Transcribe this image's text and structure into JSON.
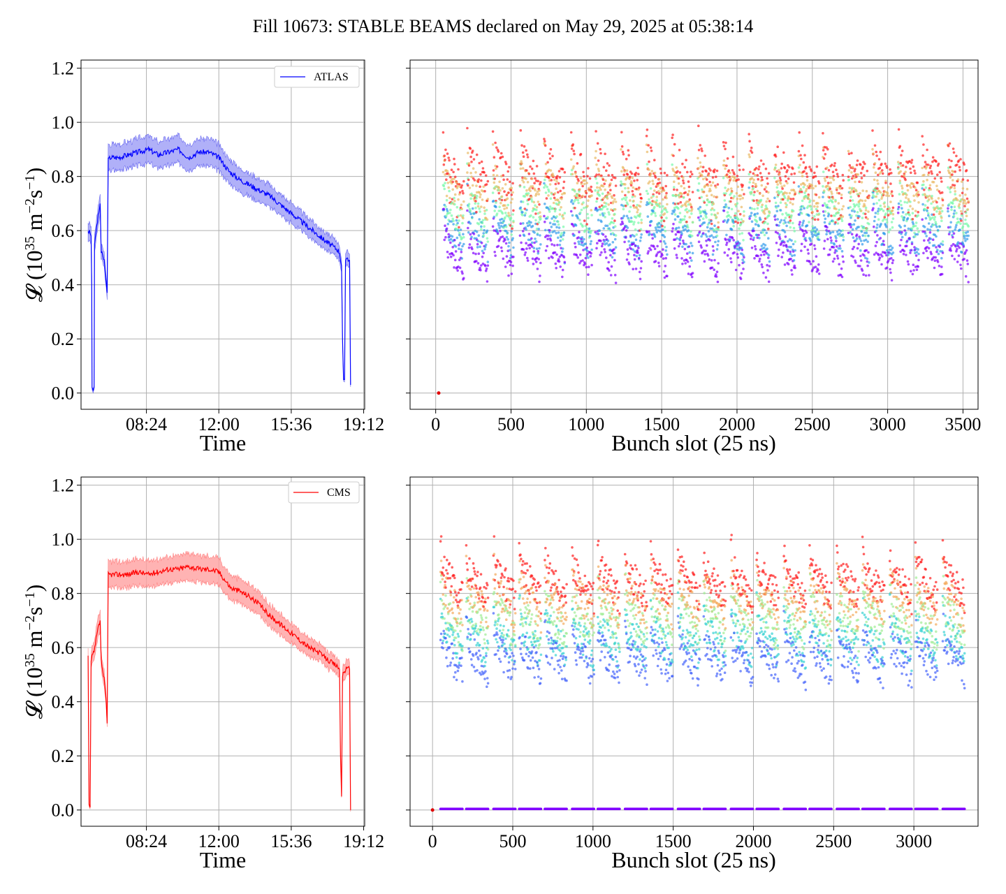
{
  "title": "Fill 10673: STABLE BEAMS declared on May 29, 2025 at 05:38:14",
  "colors": {
    "atlas": "#0000ff",
    "atlas_band": "#8f8ff5",
    "cms": "#ff0000",
    "cms_band": "#ffa0a0",
    "grid": "#b0b0b0"
  },
  "chart_data": [
    {
      "id": "atlas-time",
      "type": "line",
      "series": [
        {
          "name": "ATLAS",
          "color": "#0000ff"
        }
      ],
      "xlabel": "Time",
      "ylabel_main": "𝓛 (10",
      "ylabel_sup1": "35",
      "ylabel_mid": " m",
      "ylabel_sup2": "−2",
      "ylabel_mid2": "s",
      "ylabel_sup3": "−1",
      "ylabel_end": ")",
      "x_ticks": [
        "08:24",
        "12:00",
        "15:36",
        "19:12"
      ],
      "x_tick_hours": [
        8.4,
        12.0,
        15.6,
        19.2
      ],
      "xlim_hours": [
        5.15,
        19.25
      ],
      "ylim": [
        -0.06,
        1.23
      ],
      "y_ticks": [
        "0.0",
        "0.2",
        "0.4",
        "0.6",
        "0.8",
        "1.0",
        "1.2"
      ],
      "line": [
        [
          5.5,
          0.6
        ],
        [
          5.6,
          0.59
        ],
        [
          5.65,
          0.58
        ],
        [
          5.68,
          0.4
        ],
        [
          5.7,
          0.02
        ],
        [
          5.75,
          0.01
        ],
        [
          5.8,
          0.02
        ],
        [
          5.82,
          0.55
        ],
        [
          5.9,
          0.6
        ],
        [
          6.0,
          0.65
        ],
        [
          6.1,
          0.7
        ],
        [
          6.15,
          0.52
        ],
        [
          6.3,
          0.49
        ],
        [
          6.4,
          0.41
        ],
        [
          6.45,
          0.37
        ],
        [
          6.5,
          0.86
        ],
        [
          6.6,
          0.87
        ],
        [
          7.0,
          0.87
        ],
        [
          7.5,
          0.88
        ],
        [
          8.0,
          0.89
        ],
        [
          8.5,
          0.9
        ],
        [
          9.0,
          0.88
        ],
        [
          9.5,
          0.89
        ],
        [
          10.0,
          0.9
        ],
        [
          10.5,
          0.87
        ],
        [
          11.0,
          0.89
        ],
        [
          11.5,
          0.89
        ],
        [
          12.0,
          0.87
        ],
        [
          12.2,
          0.85
        ],
        [
          12.5,
          0.82
        ],
        [
          13.0,
          0.79
        ],
        [
          13.5,
          0.77
        ],
        [
          14.0,
          0.75
        ],
        [
          14.5,
          0.73
        ],
        [
          15.0,
          0.7
        ],
        [
          15.5,
          0.67
        ],
        [
          16.0,
          0.64
        ],
        [
          16.5,
          0.61
        ],
        [
          17.0,
          0.58
        ],
        [
          17.5,
          0.55
        ],
        [
          17.9,
          0.53
        ],
        [
          18.0,
          0.52
        ],
        [
          18.1,
          0.47
        ],
        [
          18.15,
          0.2
        ],
        [
          18.2,
          0.05
        ],
        [
          18.25,
          0.05
        ],
        [
          18.3,
          0.49
        ],
        [
          18.5,
          0.49
        ],
        [
          18.55,
          0.03
        ]
      ],
      "band_half_width": 0.05
    },
    {
      "id": "atlas-bunch",
      "type": "scatter",
      "xlabel": "Bunch slot (25 ns)",
      "x_ticks": [
        "0",
        "500",
        "1000",
        "1500",
        "2000",
        "2500",
        "3000",
        "3500"
      ],
      "x_tick_values": [
        0,
        500,
        1000,
        1500,
        2000,
        2500,
        3000,
        3500
      ],
      "xlim": [
        -170,
        3600
      ],
      "ylim": [
        -0.06,
        1.23
      ],
      "train_starts": [
        50,
        210,
        380,
        560,
        720,
        900,
        1060,
        1230,
        1400,
        1570,
        1740,
        1910,
        2080,
        2250,
        2410,
        2570,
        2740,
        2900,
        3070,
        3230,
        3400
      ],
      "train_length": 140,
      "extra_point": [
        20,
        0.0
      ]
    },
    {
      "id": "cms-time",
      "type": "line",
      "series": [
        {
          "name": "CMS",
          "color": "#ff0000"
        }
      ],
      "xlabel": "Time",
      "ylabel_main": "𝓛 (10",
      "ylabel_sup1": "35",
      "ylabel_mid": " m",
      "ylabel_sup2": "−2",
      "ylabel_mid2": "s",
      "ylabel_sup3": "−1",
      "ylabel_end": ")",
      "x_ticks": [
        "08:24",
        "12:00",
        "15:36",
        "19:12"
      ],
      "x_tick_hours": [
        8.4,
        12.0,
        15.6,
        19.2
      ],
      "xlim_hours": [
        5.15,
        19.25
      ],
      "ylim": [
        -0.06,
        1.23
      ],
      "y_ticks": [
        "0.0",
        "0.2",
        "0.4",
        "0.6",
        "0.8",
        "1.0",
        "1.2"
      ],
      "line": [
        [
          5.5,
          0.57
        ],
        [
          5.55,
          0.02
        ],
        [
          5.6,
          0.01
        ],
        [
          5.65,
          0.55
        ],
        [
          5.7,
          0.57
        ],
        [
          5.8,
          0.58
        ],
        [
          5.9,
          0.63
        ],
        [
          6.0,
          0.67
        ],
        [
          6.1,
          0.7
        ],
        [
          6.15,
          0.55
        ],
        [
          6.3,
          0.48
        ],
        [
          6.4,
          0.4
        ],
        [
          6.45,
          0.32
        ],
        [
          6.5,
          0.87
        ],
        [
          6.6,
          0.87
        ],
        [
          7.0,
          0.87
        ],
        [
          7.5,
          0.87
        ],
        [
          8.0,
          0.88
        ],
        [
          8.5,
          0.87
        ],
        [
          9.0,
          0.88
        ],
        [
          9.5,
          0.89
        ],
        [
          10.0,
          0.89
        ],
        [
          10.5,
          0.9
        ],
        [
          11.0,
          0.89
        ],
        [
          11.5,
          0.89
        ],
        [
          12.0,
          0.88
        ],
        [
          12.3,
          0.85
        ],
        [
          12.6,
          0.82
        ],
        [
          13.0,
          0.81
        ],
        [
          13.5,
          0.79
        ],
        [
          14.0,
          0.76
        ],
        [
          14.5,
          0.72
        ],
        [
          15.0,
          0.69
        ],
        [
          15.5,
          0.66
        ],
        [
          16.0,
          0.63
        ],
        [
          16.5,
          0.6
        ],
        [
          17.0,
          0.58
        ],
        [
          17.5,
          0.55
        ],
        [
          17.9,
          0.53
        ],
        [
          18.0,
          0.52
        ],
        [
          18.05,
          0.2
        ],
        [
          18.1,
          0.05
        ],
        [
          18.15,
          0.5
        ],
        [
          18.3,
          0.52
        ],
        [
          18.5,
          0.52
        ],
        [
          18.55,
          0.0
        ]
      ],
      "band_half_width": 0.05
    },
    {
      "id": "cms-bunch",
      "type": "scatter",
      "xlabel": "Bunch slot (25 ns)",
      "x_ticks": [
        "0",
        "500",
        "1000",
        "1500",
        "2000",
        "2500",
        "3000"
      ],
      "x_tick_values": [
        0,
        500,
        1000,
        1500,
        2000,
        2500,
        3000
      ],
      "xlim": [
        -140,
        3400
      ],
      "ylim": [
        -0.06,
        1.23
      ],
      "train_starts": [
        50,
        210,
        380,
        540,
        700,
        870,
        1030,
        1200,
        1360,
        1530,
        1690,
        1860,
        2020,
        2190,
        2350,
        2520,
        2680,
        2850,
        3010,
        3180
      ],
      "train_length": 140,
      "extra_point": [
        0,
        0.0
      ],
      "zero_line": true
    }
  ]
}
